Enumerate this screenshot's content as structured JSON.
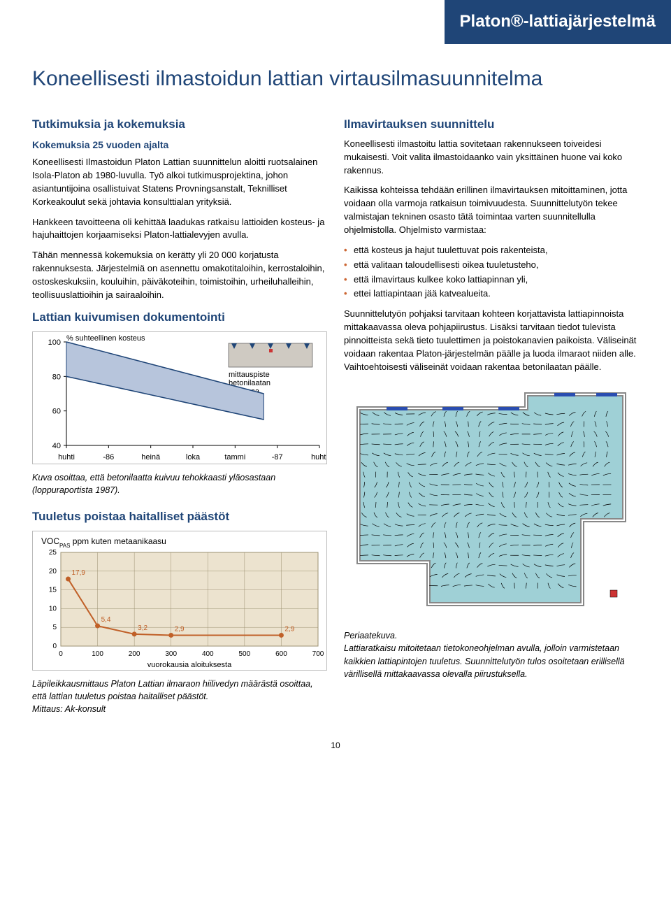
{
  "header": {
    "brand": "Platon®-lattiajärjestelmä"
  },
  "title": "Koneellisesti ilmastoidun lattian virtausilmasuunnitelma",
  "left": {
    "h2_research": "Tutkimuksia ja kokemuksia",
    "h3_exp": "Kokemuksia 25 vuoden ajalta",
    "p1": "Koneellisesti Ilmastoidun Platon Lattian suunnittelun aloitti ruotsalainen Isola-Platon ab 1980-luvulla. Työ alkoi tutkimusprojektina, johon asiantuntijoina osallistuivat Statens Provningsanstalt, Teknilliset Korkeakoulut sekä johtavia konsulttialan yrityksiä.",
    "p2": "Hankkeen tavoitteena oli kehittää laadukas ratkaisu lattioiden kosteus- ja hajuhaittojen korjaamiseksi Platon-lattialevyjen avulla.",
    "p3": "Tähän mennessä kokemuksia on kerätty yli 20 000 korjatusta rakennuksesta. Järjestelmiä on asennettu omakotitaloihin, kerrostaloihin, ostoskeskuksiin, kouluihin, päiväkoteihin, toimistoihin, urheiluhalleihin, teollisuuslattioihin ja sairaaloihin.",
    "h2_doc": "Lattian kuivumisen dokumentointi"
  },
  "chart1": {
    "type": "line-band",
    "y_label": "% suhteellinen kosteus",
    "y_ticks": [
      100,
      80,
      60,
      40
    ],
    "x_ticks": [
      "huhti",
      "-86",
      "heinä",
      "loka",
      "tammi",
      "-87",
      "huhti"
    ],
    "band_top_start": 100,
    "band_top_end": 70,
    "band_bot_start": 80,
    "band_bot_end": 55,
    "band_color": "#b7c5dc",
    "band_line_color": "#1f4577",
    "annot": "mittauspiste betonilaatan pinnassa",
    "slab_bg": "#cfcac2",
    "axis_color": "#000",
    "font_size": 11
  },
  "chart1_caption": "Kuva osoittaa, että betonilaatta kuivuu tehokkaasti yläosastaan (loppuraportista 1987).",
  "h2_vent": "Tuuletus poistaa haitalliset päästöt",
  "chart2": {
    "type": "line",
    "title": "VOC",
    "title_sub": "PAS",
    "title_rest": " ppm kuten metaanikaasu",
    "x_label": "vuorokausia aloituksesta",
    "x_ticks": [
      0,
      100,
      200,
      300,
      400,
      500,
      600,
      700
    ],
    "y_ticks": [
      0,
      5,
      10,
      15,
      20,
      25
    ],
    "points_x": [
      20,
      100,
      200,
      300,
      600
    ],
    "points_y": [
      17.9,
      5.4,
      3.2,
      2.9,
      2.9
    ],
    "point_labels": [
      "17,9",
      "5,4",
      "3,2",
      "2,9",
      "2,9"
    ],
    "line_color": "#c06028",
    "point_color": "#c06028",
    "bg_color": "#ece3cf",
    "grid_color": "#9b9070",
    "label_font_size": 10
  },
  "chart2_caption1": "Läpileikkausmittaus Platon Lattian ilmaraon hiilivedyn määrästä osoittaa, että lattian tuuletus poistaa haitalliset päästöt.",
  "chart2_caption2": "Mittaus: Ak-konsult",
  "right": {
    "h2": "Ilmavirtauksen suunnittelu",
    "p1": "Koneellisesti ilmastoitu lattia sovitetaan rakennukseen toiveidesi mukaisesti. Voit valita ilmastoidaanko vain yksittäinen huone vai koko rakennus.",
    "p2": "Kaikissa kohteissa tehdään erillinen ilmavirtauksen mitoittaminen, jotta voidaan olla varmoja ratkaisun toimivuudesta. Suunnittelutyön tekee valmistajan tekninen osasto tätä toimintaa varten suunnitellulla ohjelmistolla. Ohjelmisto varmistaa:",
    "bullets": [
      "että kosteus ja hajut tuulettuvat pois rakenteista,",
      "että valitaan taloudellisesti oikea tuuletusteho,",
      "että ilmavirtaus kulkee koko lattiapinnan yli,",
      "ettei lattiapintaan jää katvealueita."
    ],
    "p3": "Suunnittelutyön pohjaksi tarvitaan kohteen korjattavista lattiapinnoista mittakaavassa oleva pohjapiirustus. Lisäksi tarvitaan tiedot tulevista pinnoitteista sekä tieto tuulettimen ja poistokanavien paikoista. Väliseinät voidaan rakentaa Platon-järjestelmän päälle ja luoda ilmaraot niiden alle. Vaihtoehtoisesti väliseinät voidaan rakentaa betonilaatan päälle."
  },
  "flowfig": {
    "caption_title": "Periaatekuva.",
    "caption": "Lattiaratkaisu mitoitetaan tietokoneohjelman avulla, jolloin varmistetaan kaikkien lattiapintojen tuuletus. Suunnittelutyön tulos osoitetaan erillisellä värillisellä mittakaavassa olevalla piirustuksella.",
    "bg": "#9fd0d6",
    "vector_color": "#000",
    "inlet_color": "#2a4db0",
    "frame_color": "#888"
  },
  "page_number": "10"
}
